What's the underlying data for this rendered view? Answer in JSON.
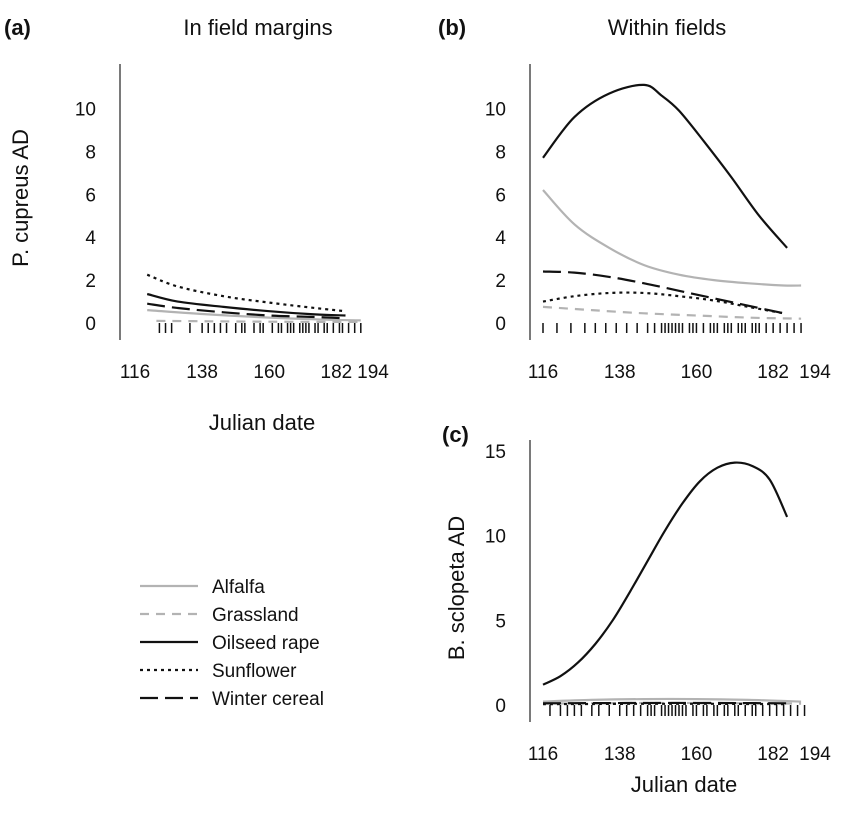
{
  "figure": {
    "xlabel": "Julian date",
    "legend": [
      {
        "name": "Alfalfa",
        "color": "#b3b3b3",
        "dash": "solid"
      },
      {
        "name": "Grassland",
        "color": "#b3b3b3",
        "dash": "dashed"
      },
      {
        "name": "Oilseed rape",
        "color": "#111111",
        "dash": "solid"
      },
      {
        "name": "Sunflower",
        "color": "#111111",
        "dash": "dotted"
      },
      {
        "name": "Winter cereal",
        "color": "#111111",
        "dash": "longdash"
      }
    ]
  },
  "chart_data": [
    {
      "id": "a",
      "letter": "(a)",
      "title": "In field margins",
      "type": "line",
      "ylabel": "P. cupreus AD",
      "xlabel": "Julian date",
      "xlim": [
        116,
        194
      ],
      "ylim": [
        0,
        12
      ],
      "xticks": [
        116,
        138,
        160,
        182,
        194
      ],
      "yticks": [
        0,
        2,
        4,
        6,
        8,
        10
      ],
      "legend": "bottom-left",
      "series": [
        {
          "name": "Alfalfa",
          "x": [
            120,
            140,
            160,
            180,
            190
          ],
          "y": [
            0.6,
            0.4,
            0.25,
            0.15,
            0.12
          ]
        },
        {
          "name": "Grassland",
          "x": [
            123,
            140,
            160,
            180,
            190
          ],
          "y": [
            0.1,
            0.08,
            0.06,
            0.05,
            0.05
          ]
        },
        {
          "name": "Oilseed rape",
          "x": [
            120,
            130,
            145,
            160,
            175,
            185
          ],
          "y": [
            1.35,
            1.0,
            0.75,
            0.55,
            0.4,
            0.35
          ]
        },
        {
          "name": "Sunflower",
          "x": [
            120,
            130,
            145,
            160,
            175,
            185
          ],
          "y": [
            2.25,
            1.7,
            1.25,
            0.95,
            0.7,
            0.55
          ]
        },
        {
          "name": "Winter cereal",
          "x": [
            120,
            130,
            145,
            160,
            175,
            185
          ],
          "y": [
            0.9,
            0.7,
            0.5,
            0.35,
            0.28,
            0.22
          ]
        }
      ],
      "rug": [
        124,
        126,
        128,
        134,
        138,
        140,
        142,
        144,
        146,
        149,
        151,
        152,
        155,
        157,
        158,
        161,
        163,
        164,
        166,
        167,
        168,
        170,
        171,
        172,
        173,
        175,
        176,
        178,
        179,
        181,
        183,
        184,
        186,
        188,
        190
      ]
    },
    {
      "id": "b",
      "letter": "(b)",
      "title": "Within fields",
      "type": "line",
      "ylabel": "",
      "xlabel": "",
      "xlim": [
        116,
        194
      ],
      "ylim": [
        0,
        12
      ],
      "xticks": [
        116,
        138,
        160,
        182,
        194
      ],
      "yticks": [
        0,
        2,
        4,
        6,
        8,
        10
      ],
      "series": [
        {
          "name": "Alfalfa",
          "x": [
            116,
            125,
            135,
            145,
            155,
            165,
            175,
            185,
            190
          ],
          "y": [
            6.2,
            4.6,
            3.5,
            2.7,
            2.25,
            2.0,
            1.85,
            1.75,
            1.75
          ]
        },
        {
          "name": "Grassland",
          "x": [
            116,
            130,
            145,
            160,
            175,
            190
          ],
          "y": [
            0.75,
            0.6,
            0.45,
            0.35,
            0.25,
            0.2
          ]
        },
        {
          "name": "Oilseed rape",
          "x": [
            116,
            125,
            135,
            145,
            150,
            155,
            162,
            170,
            178,
            186
          ],
          "y": [
            7.7,
            9.6,
            10.7,
            11.1,
            10.6,
            9.9,
            8.5,
            6.8,
            5.0,
            3.5
          ]
        },
        {
          "name": "Sunflower",
          "x": [
            116,
            125,
            135,
            145,
            155,
            165,
            175,
            185
          ],
          "y": [
            1.0,
            1.25,
            1.4,
            1.4,
            1.25,
            1.05,
            0.75,
            0.45
          ]
        },
        {
          "name": "Winter cereal",
          "x": [
            116,
            125,
            135,
            145,
            155,
            165,
            175,
            185
          ],
          "y": [
            2.4,
            2.35,
            2.15,
            1.85,
            1.5,
            1.15,
            0.8,
            0.45
          ]
        }
      ],
      "rug": [
        116,
        120,
        124,
        128,
        131,
        134,
        137,
        140,
        143,
        146,
        148,
        150,
        151,
        152,
        153,
        154,
        155,
        156,
        158,
        159,
        160,
        162,
        164,
        165,
        166,
        168,
        169,
        170,
        172,
        173,
        174,
        176,
        177,
        178,
        180,
        182,
        184,
        186,
        188,
        190
      ]
    },
    {
      "id": "c",
      "letter": "(c)",
      "title": "",
      "type": "line",
      "ylabel": "B. sclopeta AD",
      "xlabel": "Julian date",
      "xlim": [
        116,
        194
      ],
      "ylim": [
        0,
        15.5
      ],
      "xticks": [
        116,
        138,
        160,
        182,
        194
      ],
      "yticks": [
        0,
        5,
        10,
        15
      ],
      "series": [
        {
          "name": "Alfalfa",
          "x": [
            116,
            130,
            145,
            160,
            175,
            190
          ],
          "y": [
            0.2,
            0.3,
            0.35,
            0.35,
            0.3,
            0.2
          ]
        },
        {
          "name": "Grassland",
          "x": [
            116,
            130,
            145,
            160,
            175,
            190
          ],
          "y": [
            0.08,
            0.1,
            0.12,
            0.12,
            0.1,
            0.08
          ]
        },
        {
          "name": "Oilseed rape",
          "x": [
            116,
            121,
            126,
            131,
            136,
            141,
            146,
            151,
            156,
            161,
            166,
            171,
            176,
            181,
            186
          ],
          "y": [
            1.2,
            1.7,
            2.5,
            3.6,
            5.0,
            6.7,
            8.5,
            10.3,
            11.9,
            13.2,
            14.0,
            14.3,
            14.1,
            13.3,
            11.1
          ]
        },
        {
          "name": "Sunflower",
          "x": [
            116,
            130,
            145,
            160,
            175,
            186
          ],
          "y": [
            0.05,
            0.06,
            0.07,
            0.07,
            0.06,
            0.05
          ]
        },
        {
          "name": "Winter cereal",
          "x": [
            116,
            130,
            145,
            160,
            175,
            186
          ],
          "y": [
            0.1,
            0.11,
            0.12,
            0.12,
            0.11,
            0.1
          ]
        }
      ],
      "rug": [
        118,
        121,
        123,
        125,
        127,
        130,
        132,
        135,
        138,
        140,
        142,
        144,
        146,
        147,
        148,
        150,
        151,
        152,
        153,
        154,
        155,
        156,
        157,
        159,
        160,
        162,
        163,
        165,
        166,
        168,
        169,
        171,
        172,
        174,
        176,
        177,
        179,
        181,
        183,
        185,
        187,
        189,
        191
      ]
    }
  ]
}
